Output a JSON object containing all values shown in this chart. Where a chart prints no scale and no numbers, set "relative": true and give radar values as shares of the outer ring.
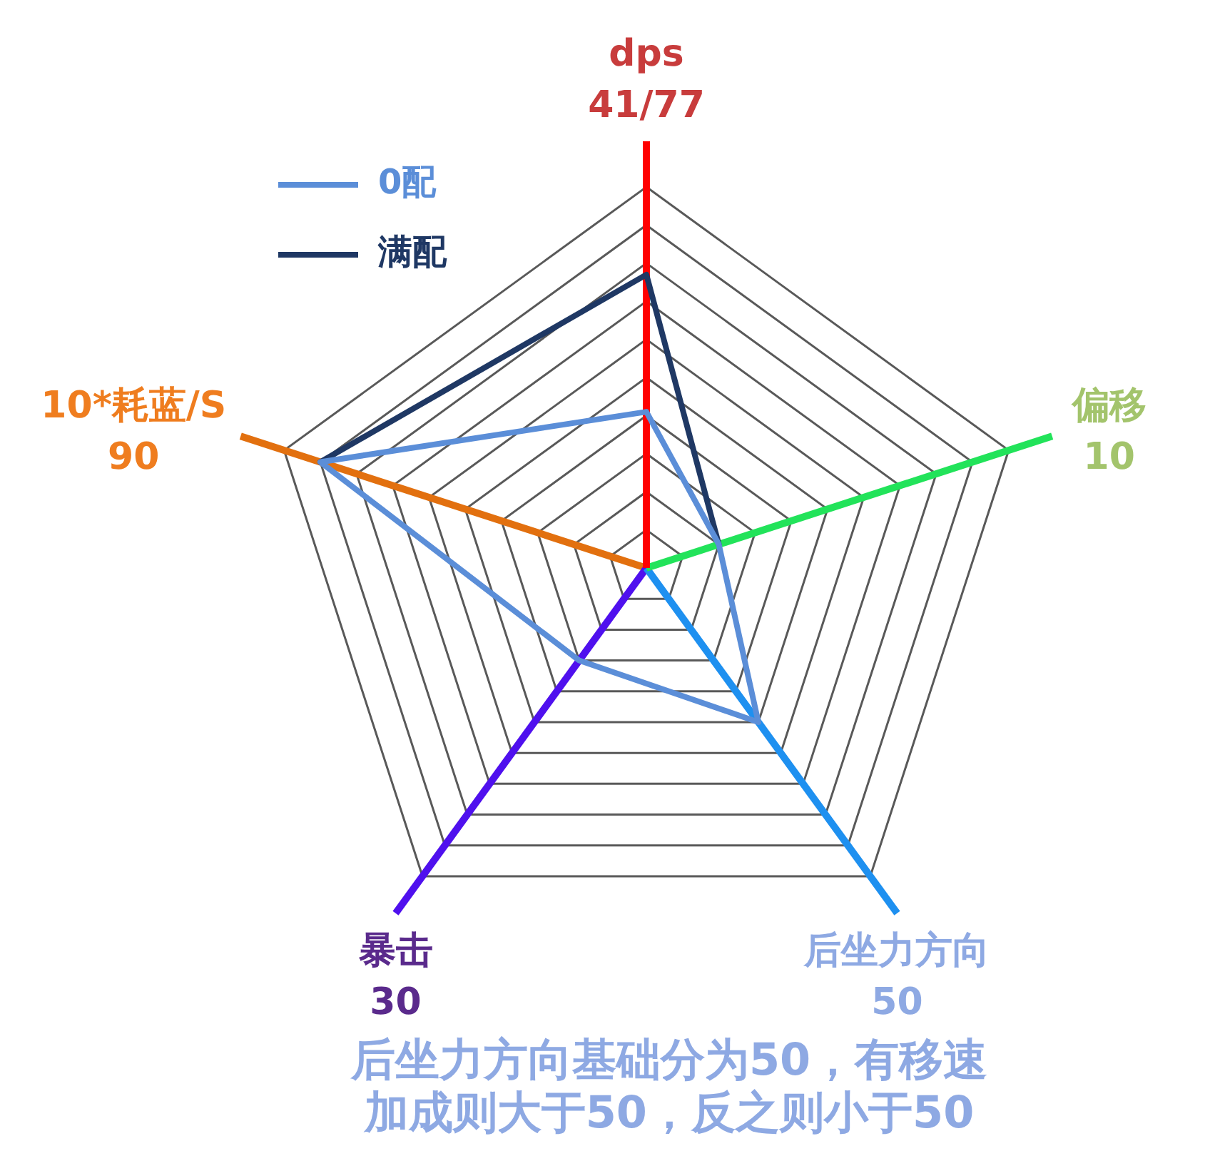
{
  "chart_data": {
    "type": "radar",
    "categories": [
      "dps\n41/77",
      "偏移\n10",
      "后坐力方向\n50",
      "暴击\n30",
      "10*耗蓝/S\n90"
    ],
    "colors": [
      "#ff0000",
      "#22e35a",
      "#1e90f0",
      "#4f10ee",
      "#e2700f"
    ],
    "series": [
      {
        "name": "0配",
        "color": "#5b8ed8",
        "values": [
          0.41,
          0.2,
          0.5,
          0.3,
          0.9
        ]
      },
      {
        "name": "满配",
        "color": "#1f3864",
        "values": [
          0.77,
          0.2,
          null,
          null,
          0.9
        ]
      }
    ],
    "relative": true,
    "grid": true,
    "legend": "top left",
    "annotations": [
      "后坐力方向基础分为50，有移速加成则大于50，反之则小于50"
    ]
  }
}
